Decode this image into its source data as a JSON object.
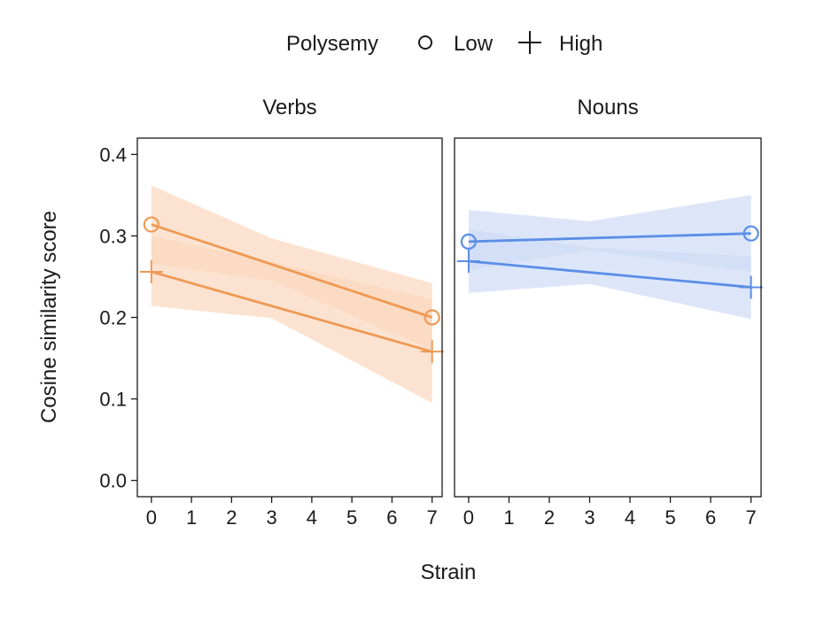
{
  "chart_data": {
    "type": "line",
    "legend": {
      "title": "Polysemy",
      "placement": "top",
      "entries": [
        {
          "label": "Low",
          "marker": "circle"
        },
        {
          "label": "High",
          "marker": "plus"
        }
      ]
    },
    "ylabel": "Cosine similarity score",
    "xlabel": "Strain",
    "x_ticks": [
      "0",
      "1",
      "2",
      "3",
      "4",
      "5",
      "6",
      "7"
    ],
    "y_ticks": [
      "0.0",
      "0.1",
      "0.2",
      "0.3",
      "0.4"
    ],
    "xlim": [
      -0.35,
      7.25
    ],
    "ylim": [
      -0.02,
      0.42
    ],
    "grid": false,
    "panels": [
      {
        "title": "Verbs",
        "color": "#ee9a55",
        "band_color": "#fbd7bd",
        "series": [
          {
            "name": "Low",
            "marker": "circle",
            "x": [
              0,
              7
            ],
            "y": [
              0.314,
              0.2
            ],
            "band_x": [
              0,
              3,
              7
            ],
            "band_lower": [
              0.266,
              0.245,
              0.16
            ],
            "band_upper": [
              0.362,
              0.297,
              0.242
            ]
          },
          {
            "name": "High",
            "marker": "plus",
            "x": [
              0,
              7
            ],
            "y": [
              0.256,
              0.158
            ],
            "band_x": [
              0,
              3,
              7
            ],
            "band_lower": [
              0.214,
              0.199,
              0.095
            ],
            "band_upper": [
              0.3,
              0.268,
              0.222
            ]
          }
        ]
      },
      {
        "title": "Nouns",
        "color": "#5b8ee6",
        "band_color": "#cfdcf7",
        "series": [
          {
            "name": "Low",
            "marker": "circle",
            "x": [
              0,
              7
            ],
            "y": [
              0.293,
              0.303
            ],
            "band_x": [
              0,
              3,
              7
            ],
            "band_lower": [
              0.258,
              0.282,
              0.256
            ],
            "band_upper": [
              0.332,
              0.318,
              0.35
            ]
          },
          {
            "name": "High",
            "marker": "plus",
            "x": [
              0,
              7
            ],
            "y": [
              0.269,
              0.237
            ],
            "band_x": [
              0,
              3,
              7
            ],
            "band_lower": [
              0.23,
              0.241,
              0.198
            ],
            "band_upper": [
              0.308,
              0.286,
              0.275
            ]
          }
        ]
      }
    ]
  }
}
